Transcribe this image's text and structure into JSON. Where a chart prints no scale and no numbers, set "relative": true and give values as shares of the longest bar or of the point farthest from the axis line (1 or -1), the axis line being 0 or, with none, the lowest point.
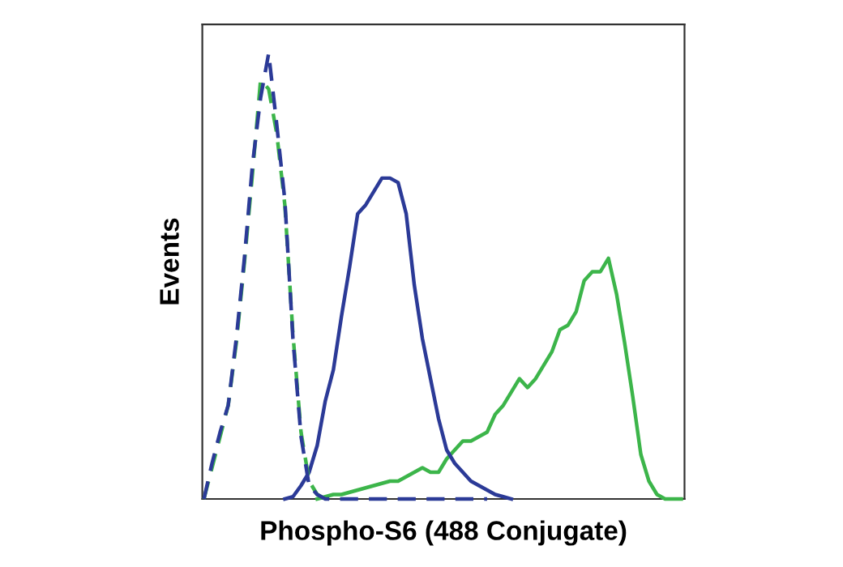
{
  "chart_data": {
    "type": "line",
    "relative": true,
    "xlabel": "Phospho-S6 (488 Conjugate)",
    "ylabel": "Events",
    "legend": false,
    "grid": false,
    "categories": [
      null,
      null,
      null,
      null,
      null,
      null,
      null,
      null,
      null,
      null,
      null,
      null,
      null,
      null,
      null,
      null,
      null,
      null,
      null,
      null,
      null,
      null,
      null,
      null,
      null,
      null,
      null,
      null,
      null,
      null,
      null,
      null,
      null,
      null,
      null,
      null,
      null,
      null,
      null,
      null,
      null,
      null,
      null,
      null,
      null,
      null,
      null,
      null,
      null,
      null,
      null,
      null,
      null,
      null,
      null,
      null,
      null,
      null,
      null,
      null
    ],
    "series": [
      {
        "color": "#3cb54a",
        "line_style": "solid",
        "values": [
          null,
          null,
          null,
          null,
          null,
          null,
          null,
          null,
          null,
          null,
          null,
          null,
          null,
          null,
          0,
          0.005,
          0.01,
          0.01,
          0.015,
          0.02,
          0.025,
          0.03,
          0.035,
          0.04,
          0.04,
          0.05,
          0.06,
          0.07,
          0.06,
          0.06,
          0.09,
          0.11,
          0.13,
          0.13,
          0.14,
          0.15,
          0.19,
          0.21,
          0.24,
          0.27,
          0.25,
          0.27,
          0.3,
          0.33,
          0.38,
          0.39,
          0.42,
          0.49,
          0.51,
          0.51,
          0.54,
          0.46,
          0.35,
          0.23,
          0.1,
          0.04,
          0.01,
          0,
          0,
          0
        ]
      },
      {
        "color": "#2b3a97",
        "line_style": "solid",
        "values": [
          null,
          null,
          null,
          null,
          null,
          null,
          null,
          null,
          null,
          null,
          0,
          0.005,
          0.03,
          0.06,
          0.12,
          0.22,
          0.29,
          0.41,
          0.52,
          0.64,
          0.66,
          0.69,
          0.72,
          0.72,
          0.71,
          0.64,
          0.48,
          0.36,
          0.27,
          0.18,
          0.11,
          0.08,
          0.06,
          0.04,
          0.03,
          0.02,
          0.01,
          0.005,
          0,
          null,
          null,
          null,
          null,
          null,
          null,
          null,
          null,
          null,
          null,
          null,
          null,
          null,
          null,
          null,
          null,
          null,
          null,
          null,
          null,
          null
        ]
      },
      {
        "color": "#3cb54a",
        "line_style": "dashed",
        "values": [
          0,
          0.07,
          0.14,
          0.21,
          0.35,
          0.53,
          0.73,
          0.94,
          0.92,
          0.82,
          0.66,
          0.37,
          0.15,
          0.04,
          0.01,
          0,
          null,
          null,
          null,
          null,
          null,
          null,
          null,
          null,
          null,
          null,
          null,
          null,
          null,
          null,
          null,
          null,
          null,
          null,
          null,
          null,
          null,
          null,
          null,
          null,
          null,
          null,
          null,
          null,
          null,
          null,
          null,
          null,
          null,
          null,
          null,
          null,
          null,
          null,
          null,
          null,
          null,
          null,
          null,
          null
        ]
      },
      {
        "color": "#2b3a97",
        "line_style": "dashed",
        "values": [
          0,
          0.08,
          0.15,
          0.21,
          0.36,
          0.54,
          0.75,
          0.9,
          1,
          0.84,
          0.67,
          0.36,
          0.14,
          0.03,
          0.01,
          0,
          0,
          0,
          0,
          0,
          0,
          0,
          0,
          0,
          0,
          0,
          0,
          0,
          0,
          0,
          0,
          0,
          0,
          0,
          0,
          0,
          null,
          null,
          null,
          null,
          null,
          null,
          null,
          null,
          null,
          null,
          null,
          null,
          null,
          null,
          null,
          null,
          null,
          null,
          null,
          null,
          null,
          null,
          null,
          null
        ]
      }
    ]
  }
}
